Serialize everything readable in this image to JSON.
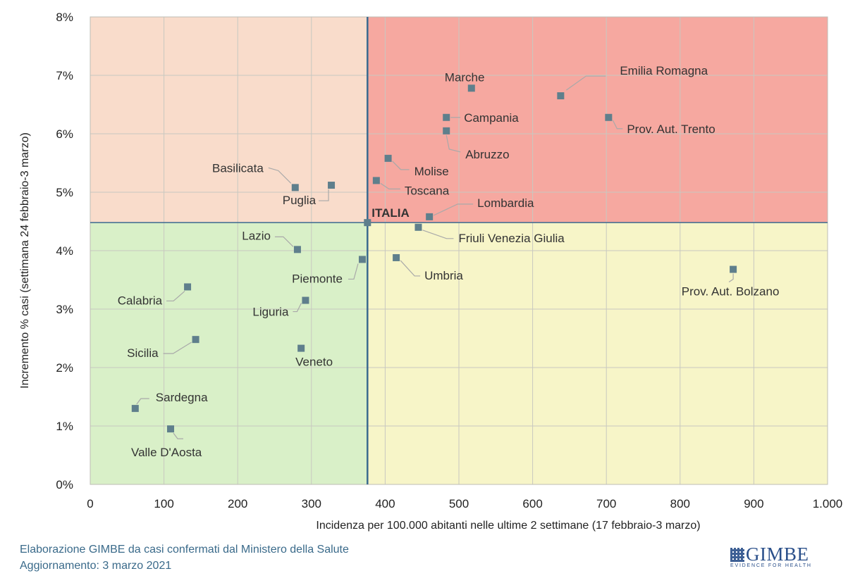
{
  "chart_data": {
    "type": "scatter",
    "xlabel": "Incidenza per 100.000 abitanti nelle ultime 2 settimane (17 febbraio-3 marzo)",
    "ylabel": "Incremento % casi (settimana 24 febbraio-3 marzo)",
    "xlim": [
      0,
      1000
    ],
    "ylim": [
      0,
      8
    ],
    "x_ticks": [
      "0",
      "100",
      "200",
      "300",
      "400",
      "500",
      "600",
      "700",
      "800",
      "900",
      "1.000"
    ],
    "y_ticks": [
      "0%",
      "1%",
      "2%",
      "3%",
      "4%",
      "5%",
      "6%",
      "7%",
      "8%"
    ],
    "grid": true,
    "reference": {
      "label": "ITALIA",
      "x": 376,
      "y": 4.48
    },
    "quadrant_colors": {
      "top_left": "#f9dccb",
      "top_right": "#f6a8a0",
      "bottom_left": "#d9f0c8",
      "bottom_right": "#f7f5c8"
    },
    "reference_line_color": "#3a6a8f",
    "marker_color": "#5f7f8c",
    "points": [
      {
        "label": "Marche",
        "x": 517,
        "y": 6.78
      },
      {
        "label": "Emilia Romagna",
        "x": 638,
        "y": 6.65
      },
      {
        "label": "Campania",
        "x": 483,
        "y": 6.28
      },
      {
        "label": "Prov. Aut. Trento",
        "x": 703,
        "y": 6.28
      },
      {
        "label": "Abruzzo",
        "x": 483,
        "y": 6.05
      },
      {
        "label": "Molise",
        "x": 404,
        "y": 5.58
      },
      {
        "label": "Toscana",
        "x": 388,
        "y": 5.2
      },
      {
        "label": "Basilicata",
        "x": 278,
        "y": 5.08
      },
      {
        "label": "Puglia",
        "x": 327,
        "y": 5.12
      },
      {
        "label": "Lombardia",
        "x": 460,
        "y": 4.58
      },
      {
        "label": "Friuli Venezia Giulia",
        "x": 445,
        "y": 4.4
      },
      {
        "label": "Lazio",
        "x": 281,
        "y": 4.02
      },
      {
        "label": "Umbria",
        "x": 415,
        "y": 3.88
      },
      {
        "label": "Piemonte",
        "x": 369,
        "y": 3.85
      },
      {
        "label": "Prov. Aut. Bolzano",
        "x": 872,
        "y": 3.68
      },
      {
        "label": "Calabria",
        "x": 132,
        "y": 3.38
      },
      {
        "label": "Liguria",
        "x": 292,
        "y": 3.15
      },
      {
        "label": "Sicilia",
        "x": 143,
        "y": 2.48
      },
      {
        "label": "Veneto",
        "x": 286,
        "y": 2.33
      },
      {
        "label": "Sardegna",
        "x": 61,
        "y": 1.3
      },
      {
        "label": "Valle D'Aosta",
        "x": 109,
        "y": 0.95
      }
    ]
  },
  "footer": {
    "source": "Elaborazione GIMBE da casi confermati dal Ministero della Salute",
    "update": "Aggiornamento: 3 marzo 2021"
  },
  "logo": {
    "text": "GIMBE",
    "subtitle": "EVIDENCE FOR HEALTH",
    "color": "#2a4f8a"
  }
}
